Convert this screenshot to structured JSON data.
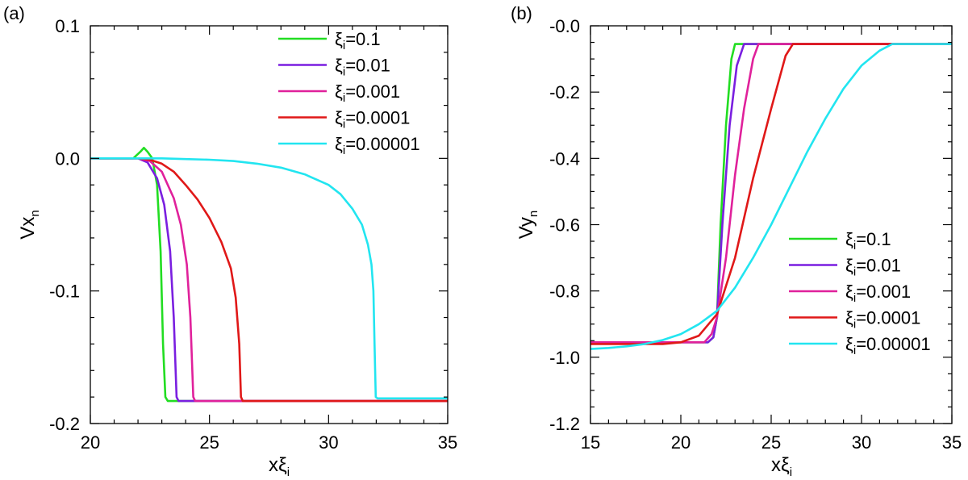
{
  "chart_data": [
    {
      "panel_label": "(a)",
      "type": "line",
      "xlabel": {
        "base": "xξ",
        "sub": "i"
      },
      "ylabel": {
        "base": "Vx",
        "sub": "n"
      },
      "xlim": [
        20,
        35
      ],
      "ylim": [
        -0.2,
        0.1
      ],
      "xticks": [
        20,
        25,
        30,
        35
      ],
      "xtick_labels": [
        "20",
        "25",
        "30",
        "35"
      ],
      "yticks": [
        -0.2,
        -0.1,
        0.0,
        0.1
      ],
      "ytick_labels": [
        "-0.2",
        "-0.1",
        "0.0",
        "0.1"
      ],
      "legend_position": "top-right",
      "series": [
        {
          "name": "ξi=0.1",
          "color": "#22dd22",
          "points": [
            [
              20,
              0
            ],
            [
              21.8,
              0
            ],
            [
              22.1,
              0.005
            ],
            [
              22.25,
              0.008
            ],
            [
              22.4,
              0.005
            ],
            [
              22.6,
              0
            ],
            [
              22.8,
              -0.02
            ],
            [
              22.95,
              -0.07
            ],
            [
              23.05,
              -0.14
            ],
            [
              23.15,
              -0.18
            ],
            [
              23.25,
              -0.183
            ],
            [
              35,
              -0.183
            ]
          ]
        },
        {
          "name": "ξi=0.01",
          "color": "#7a1fe0",
          "points": [
            [
              20,
              0
            ],
            [
              22.0,
              0
            ],
            [
              22.4,
              -0.003
            ],
            [
              22.8,
              -0.015
            ],
            [
              23.1,
              -0.035
            ],
            [
              23.35,
              -0.07
            ],
            [
              23.5,
              -0.12
            ],
            [
              23.62,
              -0.18
            ],
            [
              23.7,
              -0.183
            ],
            [
              35,
              -0.183
            ]
          ]
        },
        {
          "name": "ξi=0.001",
          "color": "#e0219b",
          "points": [
            [
              20,
              0
            ],
            [
              22.0,
              0
            ],
            [
              22.5,
              -0.002
            ],
            [
              23.0,
              -0.01
            ],
            [
              23.5,
              -0.03
            ],
            [
              23.8,
              -0.05
            ],
            [
              24.05,
              -0.08
            ],
            [
              24.2,
              -0.12
            ],
            [
              24.32,
              -0.18
            ],
            [
              24.4,
              -0.183
            ],
            [
              35,
              -0.183
            ]
          ]
        },
        {
          "name": "ξi=0.0001",
          "color": "#e01818",
          "points": [
            [
              20,
              0
            ],
            [
              22.0,
              0
            ],
            [
              22.5,
              -0.001
            ],
            [
              23.0,
              -0.004
            ],
            [
              23.5,
              -0.01
            ],
            [
              24.0,
              -0.02
            ],
            [
              24.5,
              -0.031
            ],
            [
              25.0,
              -0.045
            ],
            [
              25.5,
              -0.063
            ],
            [
              25.9,
              -0.083
            ],
            [
              26.1,
              -0.105
            ],
            [
              26.25,
              -0.14
            ],
            [
              26.32,
              -0.18
            ],
            [
              26.4,
              -0.183
            ],
            [
              35,
              -0.183
            ]
          ]
        },
        {
          "name": "ξi=0.00001",
          "color": "#22e5f0",
          "points": [
            [
              20,
              0
            ],
            [
              23.0,
              0
            ],
            [
              24.0,
              -0.0005
            ],
            [
              25.0,
              -0.001
            ],
            [
              26.0,
              -0.002
            ],
            [
              27.0,
              -0.004
            ],
            [
              28.0,
              -0.007
            ],
            [
              29.0,
              -0.012
            ],
            [
              30.0,
              -0.02
            ],
            [
              30.5,
              -0.027
            ],
            [
              31.0,
              -0.038
            ],
            [
              31.4,
              -0.05
            ],
            [
              31.65,
              -0.065
            ],
            [
              31.8,
              -0.08
            ],
            [
              31.88,
              -0.1
            ],
            [
              31.93,
              -0.14
            ],
            [
              31.98,
              -0.18
            ],
            [
              32.05,
              -0.181
            ],
            [
              35,
              -0.181
            ]
          ]
        }
      ]
    },
    {
      "panel_label": "(b)",
      "type": "line",
      "xlabel": {
        "base": "xξ",
        "sub": "i"
      },
      "ylabel": {
        "base": "Vy",
        "sub": "n"
      },
      "xlim": [
        15,
        35
      ],
      "ylim": [
        -1.2,
        0.0
      ],
      "xticks": [
        15,
        20,
        25,
        30,
        35
      ],
      "xtick_labels": [
        "15",
        "20",
        "25",
        "30",
        "35"
      ],
      "yticks": [
        -1.2,
        -1.0,
        -0.8,
        -0.6,
        -0.4,
        -0.2,
        0.0
      ],
      "ytick_labels": [
        "-1.2",
        "-1.0",
        "-0.8",
        "-0.6",
        "-0.4",
        "-0.2",
        "-0.0"
      ],
      "legend_position": "bottom-right",
      "series": [
        {
          "name": "ξi=0.1",
          "color": "#22dd22",
          "points": [
            [
              15,
              -0.955
            ],
            [
              21.5,
              -0.955
            ],
            [
              21.8,
              -0.94
            ],
            [
              22.0,
              -0.88
            ],
            [
              22.2,
              -0.6
            ],
            [
              22.5,
              -0.3
            ],
            [
              22.8,
              -0.1
            ],
            [
              23.0,
              -0.055
            ],
            [
              35,
              -0.055
            ]
          ]
        },
        {
          "name": "ξi=0.01",
          "color": "#7a1fe0",
          "points": [
            [
              15,
              -0.955
            ],
            [
              21.5,
              -0.955
            ],
            [
              21.8,
              -0.94
            ],
            [
              22.0,
              -0.88
            ],
            [
              22.3,
              -0.6
            ],
            [
              22.7,
              -0.3
            ],
            [
              23.1,
              -0.12
            ],
            [
              23.5,
              -0.055
            ],
            [
              35,
              -0.055
            ]
          ]
        },
        {
          "name": "ξi=0.001",
          "color": "#e0219b",
          "points": [
            [
              15,
              -0.955
            ],
            [
              21.3,
              -0.955
            ],
            [
              21.7,
              -0.93
            ],
            [
              22.0,
              -0.88
            ],
            [
              22.5,
              -0.7
            ],
            [
              23.0,
              -0.45
            ],
            [
              23.5,
              -0.25
            ],
            [
              24.0,
              -0.1
            ],
            [
              24.3,
              -0.055
            ],
            [
              35,
              -0.055
            ]
          ]
        },
        {
          "name": "ξi=0.0001",
          "color": "#e01818",
          "points": [
            [
              15,
              -0.96
            ],
            [
              19.0,
              -0.96
            ],
            [
              20.0,
              -0.955
            ],
            [
              21.0,
              -0.935
            ],
            [
              22.0,
              -0.87
            ],
            [
              23.0,
              -0.7
            ],
            [
              24.0,
              -0.46
            ],
            [
              25.0,
              -0.25
            ],
            [
              25.8,
              -0.09
            ],
            [
              26.2,
              -0.055
            ],
            [
              35,
              -0.055
            ]
          ]
        },
        {
          "name": "ξi=0.00001",
          "color": "#22e5f0",
          "points": [
            [
              15,
              -0.975
            ],
            [
              16.0,
              -0.972
            ],
            [
              17.0,
              -0.967
            ],
            [
              18.0,
              -0.96
            ],
            [
              19.0,
              -0.948
            ],
            [
              20.0,
              -0.93
            ],
            [
              21.0,
              -0.9
            ],
            [
              22.0,
              -0.86
            ],
            [
              23.0,
              -0.79
            ],
            [
              24.0,
              -0.7
            ],
            [
              25.0,
              -0.6
            ],
            [
              26.0,
              -0.49
            ],
            [
              27.0,
              -0.38
            ],
            [
              28.0,
              -0.28
            ],
            [
              29.0,
              -0.19
            ],
            [
              30.0,
              -0.12
            ],
            [
              31.0,
              -0.075
            ],
            [
              31.7,
              -0.055
            ],
            [
              35,
              -0.055
            ]
          ]
        }
      ]
    }
  ]
}
